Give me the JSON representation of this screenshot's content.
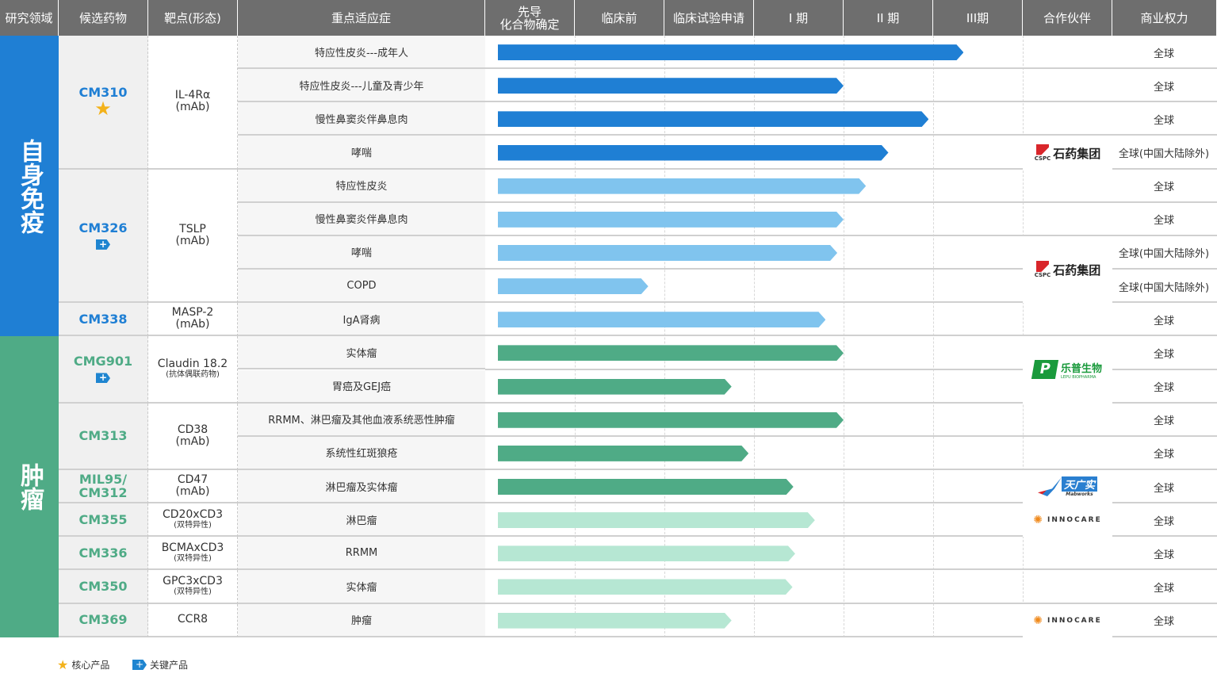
{
  "header": {
    "columns": [
      "研究领域",
      "候选药物",
      "靶点(形态)",
      "重点适应症",
      "先导\n化合物确定",
      "临床前",
      "临床试验申请",
      "I 期",
      "II 期",
      "III期",
      "合作伙伴",
      "商业权力"
    ]
  },
  "colors": {
    "autoimmune": "#1f7fd4",
    "oncology": "#4fab86",
    "bar_dark_blue": "#1f7fd4",
    "bar_light_blue": "#80c4ee",
    "bar_green": "#4fab86",
    "bar_light_green": "#b6e7d3",
    "star": "#f3b21b"
  },
  "areas": [
    {
      "label": "自身免疫",
      "color": "#1f7fd4",
      "row_count": 9
    },
    {
      "label": "肿瘤",
      "color": "#4fab86",
      "row_count": 9
    }
  ],
  "drugs": [
    {
      "name": "CM310",
      "badge": "star",
      "target": "IL-4Rα",
      "target_sub": "(mAb)",
      "row_count": 4,
      "color": "#1f7fd4"
    },
    {
      "name": "CM326",
      "badge": "plus",
      "target": "TSLP",
      "target_sub": "(mAb)",
      "row_count": 4,
      "color": "#1f7fd4"
    },
    {
      "name": "CM338",
      "badge": "",
      "target": "MASP-2",
      "target_sub": "(mAb)",
      "row_count": 1,
      "color": "#1f7fd4"
    },
    {
      "name": "CMG901",
      "badge": "plus",
      "target": "Claudin 18.2",
      "target_small": "(抗体偶联药物)",
      "row_count": 2,
      "color": "#4fab86"
    },
    {
      "name": "CM313",
      "badge": "",
      "target": "CD38",
      "target_sub": "(mAb)",
      "row_count": 2,
      "color": "#4fab86"
    },
    {
      "name": "MIL95/\nCM312",
      "badge": "",
      "target": "CD47",
      "target_sub": "(mAb)",
      "row_count": 1,
      "color": "#4fab86"
    },
    {
      "name": "CM355",
      "badge": "",
      "target": "CD20xCD3",
      "target_small": "(双特异性)",
      "row_count": 1,
      "color": "#4fab86"
    },
    {
      "name": "CM336",
      "badge": "",
      "target": "BCMAxCD3",
      "target_small": "(双特异性)",
      "row_count": 1,
      "color": "#4fab86"
    },
    {
      "name": "CM350",
      "badge": "",
      "target": "GPC3xCD3",
      "target_small": "(双特异性)",
      "row_count": 1,
      "color": "#4fab86"
    },
    {
      "name": "CM369",
      "badge": "",
      "target": "CCR8",
      "row_count": 1,
      "color": "#4fab86"
    }
  ],
  "rows": [
    {
      "indication": "特应性皮炎---成年人",
      "progress_phases": 5.34,
      "bar_color": "#1f7fd4",
      "rights": "全球"
    },
    {
      "indication": "特应性皮炎---儿童及青少年",
      "progress_phases": 4.0,
      "bar_color": "#1f7fd4",
      "rights": "全球"
    },
    {
      "indication": "慢性鼻窦炎伴鼻息肉",
      "progress_phases": 4.95,
      "bar_color": "#1f7fd4",
      "rights": "全球"
    },
    {
      "indication": "哮喘",
      "progress_phases": 4.5,
      "bar_color": "#1f7fd4",
      "rights": "全球(中国大陆除外)"
    },
    {
      "indication": "特应性皮炎",
      "progress_phases": 4.25,
      "bar_color": "#80c4ee",
      "rights": "全球"
    },
    {
      "indication": "慢性鼻窦炎伴鼻息肉",
      "progress_phases": 4.0,
      "bar_color": "#80c4ee",
      "rights": "全球"
    },
    {
      "indication": "哮喘",
      "progress_phases": 3.93,
      "bar_color": "#80c4ee",
      "rights": "全球(中国大陆除外)"
    },
    {
      "indication": "COPD",
      "progress_phases": 1.82,
      "bar_color": "#80c4ee",
      "rights": "全球(中国大陆除外)"
    },
    {
      "indication": "IgA肾病",
      "progress_phases": 3.8,
      "bar_color": "#80c4ee",
      "rights": "全球"
    },
    {
      "indication": "实体瘤",
      "progress_phases": 4.0,
      "bar_color": "#4fab86",
      "rights": "全球"
    },
    {
      "indication": "胃癌及GEJ癌",
      "progress_phases": 2.75,
      "bar_color": "#4fab86",
      "rights": "全球"
    },
    {
      "indication": "RRMM、淋巴瘤及其他血液系统恶性肿瘤",
      "progress_phases": 4.0,
      "bar_color": "#4fab86",
      "rights": "全球"
    },
    {
      "indication": "系统性红斑狼疮",
      "progress_phases": 2.94,
      "bar_color": "#4fab86",
      "rights": "全球"
    },
    {
      "indication": "淋巴瘤及实体瘤",
      "progress_phases": 3.44,
      "bar_color": "#4fab86",
      "rights": "全球"
    },
    {
      "indication": "淋巴瘤",
      "progress_phases": 3.68,
      "bar_color": "#b6e7d3",
      "rights": "全球"
    },
    {
      "indication": "RRMM",
      "progress_phases": 3.46,
      "bar_color": "#b6e7d3",
      "rights": "全球"
    },
    {
      "indication": "实体瘤",
      "progress_phases": 3.43,
      "bar_color": "#b6e7d3",
      "rights": "全球"
    },
    {
      "indication": "肿瘤",
      "progress_phases": 2.75,
      "bar_color": "#b6e7d3",
      "rights": "全球"
    }
  ],
  "partners": [
    {
      "logo": "cspc",
      "name": "石药集团",
      "sub": "CSPC",
      "start_row": 3,
      "row_count": 1
    },
    {
      "logo": "cspc",
      "name": "石药集团",
      "sub": "CSPC",
      "start_row": 6,
      "row_count": 2
    },
    {
      "logo": "lepu",
      "name": "乐普生物",
      "sub": "LEPU BIOPHARMA",
      "start_row": 9,
      "row_count": 2
    },
    {
      "logo": "mabworks",
      "name": "天广实",
      "sub": "Mabworks",
      "start_row": 13,
      "row_count": 1
    },
    {
      "logo": "innocare",
      "name": "INNOCARE",
      "start_row": 14,
      "row_count": 1
    },
    {
      "logo": "innocare",
      "name": "INNOCARE",
      "start_row": 17,
      "row_count": 1
    }
  ],
  "legend": {
    "core": "核心产品",
    "key": "关键产品"
  }
}
